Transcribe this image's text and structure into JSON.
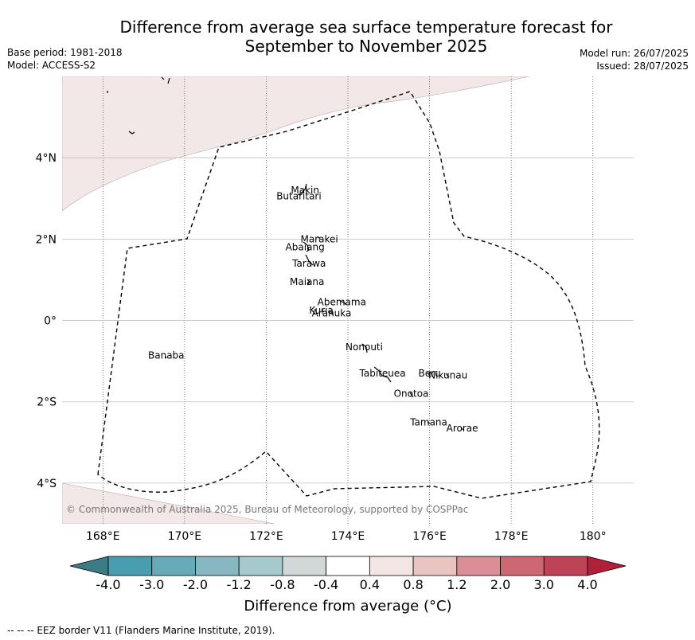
{
  "title_line1": "Difference from average sea surface temperature forecast for",
  "title_line2": "September to November 2025",
  "base_period": "Base period: 1981-2018",
  "model": "Model: ACCESS-S2",
  "model_run": "Model run: 26/07/2025",
  "issued": "Issued: 28/07/2025",
  "copyright": "© Commonwealth of Australia 2025, Bureau of Meteorology, supported by COSPPac",
  "footnote": "--  --  -- EEZ border V11 (Flanders Marine Institute, 2019).",
  "map": {
    "lon_range": [
      167,
      181
    ],
    "lat_range": [
      -5,
      6
    ],
    "lon_ticks": [
      {
        "value": 168,
        "label": "168°E"
      },
      {
        "value": 170,
        "label": "170°E"
      },
      {
        "value": 172,
        "label": "172°E"
      },
      {
        "value": 174,
        "label": "174°E"
      },
      {
        "value": 176,
        "label": "176°E"
      },
      {
        "value": 178,
        "label": "178°E"
      },
      {
        "value": 180,
        "label": "180°"
      }
    ],
    "lat_ticks": [
      {
        "value": 4,
        "label": "4°N"
      },
      {
        "value": 2,
        "label": "2°N"
      },
      {
        "value": 0,
        "label": "0°"
      },
      {
        "value": -2,
        "label": "2°S"
      },
      {
        "value": -4,
        "label": "4°S"
      }
    ],
    "islands": [
      {
        "name": "Makin",
        "lon": 172.95,
        "lat": 3.2
      },
      {
        "name": "Butaritari",
        "lon": 172.8,
        "lat": 3.05
      },
      {
        "name": "Marakei",
        "lon": 173.3,
        "lat": 2.0
      },
      {
        "name": "Abaiang",
        "lon": 172.95,
        "lat": 1.8
      },
      {
        "name": "Tarawa",
        "lon": 173.05,
        "lat": 1.4
      },
      {
        "name": "Maiana",
        "lon": 173.0,
        "lat": 0.95
      },
      {
        "name": "Abemama",
        "lon": 173.85,
        "lat": 0.45
      },
      {
        "name": "Kuria",
        "lon": 173.35,
        "lat": 0.25
      },
      {
        "name": "Aranuka",
        "lon": 173.6,
        "lat": 0.18
      },
      {
        "name": "Banaba",
        "lon": 169.55,
        "lat": -0.86
      },
      {
        "name": "Nonouti",
        "lon": 174.4,
        "lat": -0.65
      },
      {
        "name": "Tabiteuea",
        "lon": 174.85,
        "lat": -1.3
      },
      {
        "name": "Beru",
        "lon": 176.0,
        "lat": -1.3
      },
      {
        "name": "Nikunau",
        "lon": 176.45,
        "lat": -1.35
      },
      {
        "name": "Onotoa",
        "lon": 175.55,
        "lat": -1.8
      },
      {
        "name": "Tamana",
        "lon": 175.98,
        "lat": -2.5
      },
      {
        "name": "Arorae",
        "lon": 176.8,
        "lat": -2.65
      }
    ],
    "anomaly_colors": {
      "north_region": "#f3e8e8",
      "south_region": "#f3e8e8"
    }
  },
  "colorbar": {
    "label": "Difference from average (°C)",
    "ticks": [
      "-4.0",
      "-3.0",
      "-2.0",
      "-1.2",
      "-0.8",
      "-0.4",
      "0.4",
      "0.8",
      "1.2",
      "2.0",
      "3.0",
      "4.0"
    ],
    "under_color": "#3a7b85",
    "over_color": "#b0203a",
    "colors": [
      "#489eae",
      "#68abb8",
      "#87b7c1",
      "#a6c9ce",
      "#d2d8d8",
      "#ffffff",
      "#f4e6e4",
      "#e9c5c2",
      "#da8e95",
      "#cd6771",
      "#bf4356"
    ]
  }
}
